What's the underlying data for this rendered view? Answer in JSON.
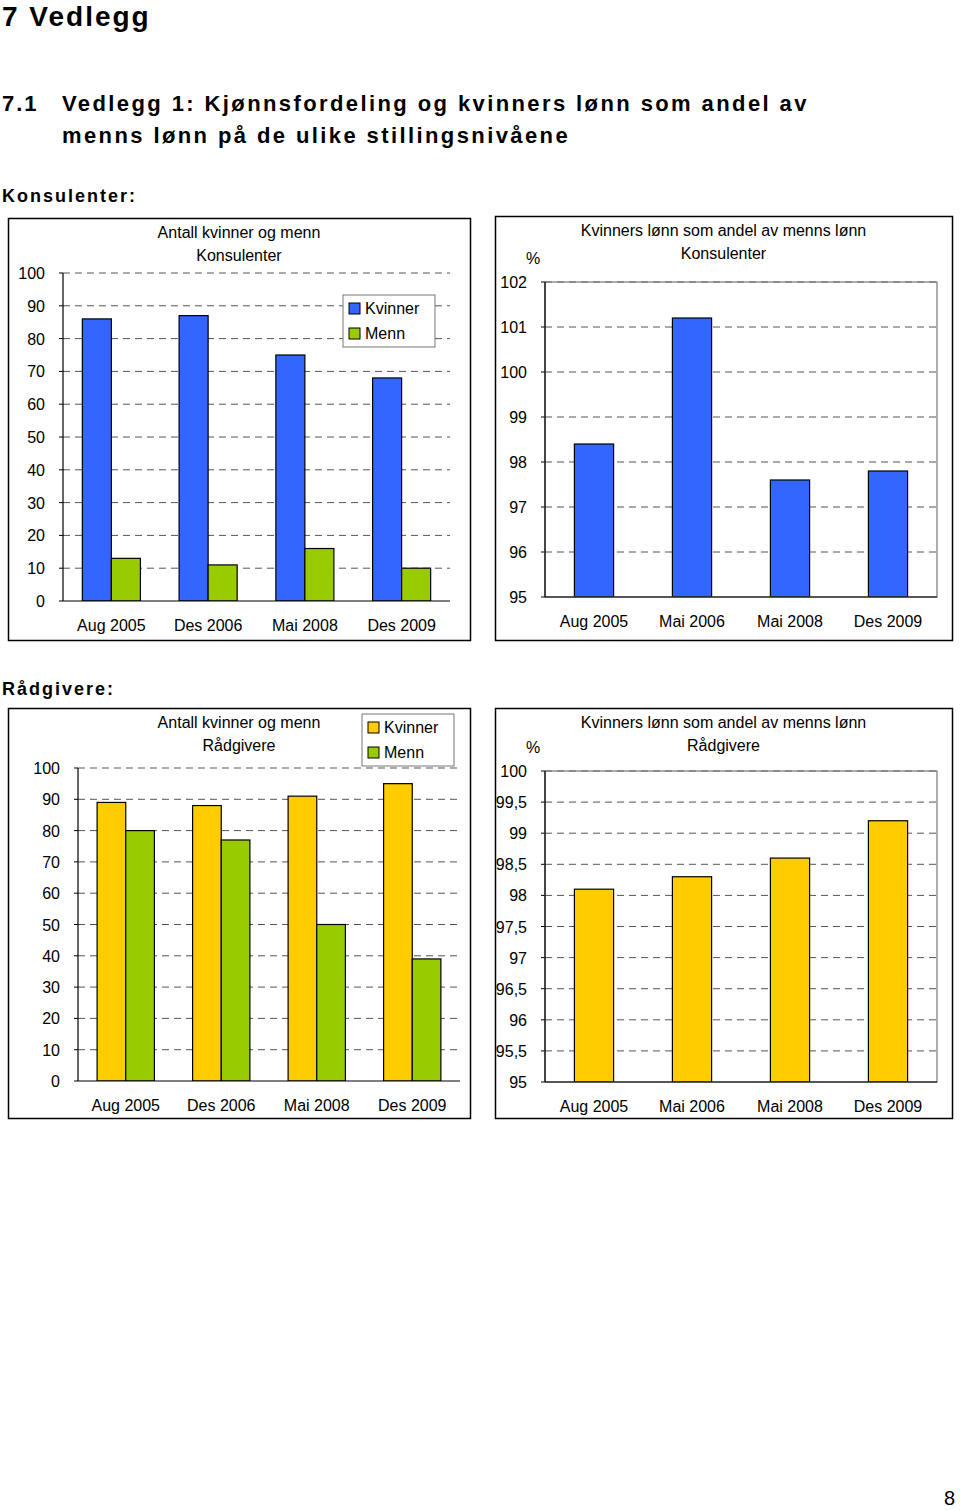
{
  "chapter": {
    "number": "7",
    "title": "Vedlegg"
  },
  "section": {
    "number": "7.1",
    "lines": [
      "Vedlegg 1: Kjønnsfordeling og kvinners lønn som andel av",
      "menns lønn på de ulike stillingsnivåene"
    ]
  },
  "groups": [
    "Konsulenter:",
    "Rådgivere:"
  ],
  "page_number": "8",
  "chart_data": [
    {
      "type": "bar",
      "title": "Antall kvinner og menn",
      "subtitle": "Konsulenter",
      "categories": [
        "Aug 2005",
        "Des 2006",
        "Mai 2008",
        "Des 2009"
      ],
      "series": [
        {
          "name": "Kvinner",
          "color": "#3366ff",
          "values": [
            86,
            87,
            75,
            68
          ]
        },
        {
          "name": "Menn",
          "color": "#99cc00",
          "values": [
            13,
            11,
            16,
            10
          ]
        }
      ],
      "ylim": [
        0,
        100
      ],
      "yticks": [
        0,
        10,
        20,
        30,
        40,
        50,
        60,
        70,
        80,
        90,
        100
      ],
      "grid": true,
      "legend": "upper right"
    },
    {
      "type": "bar",
      "title": "Kvinners lønn som andel av menns lønn",
      "subtitle": "Konsulenter",
      "ylabel": "%",
      "categories": [
        "Aug 2005",
        "Mai 2006",
        "Mai 2008",
        "Des 2009"
      ],
      "values": [
        98.4,
        101.2,
        97.6,
        97.8
      ],
      "color": "#3366ff",
      "ylim": [
        95,
        102
      ],
      "yticks": [
        95,
        96,
        97,
        98,
        99,
        100,
        101,
        102
      ],
      "grid": true
    },
    {
      "type": "bar",
      "title": "Antall kvinner og menn",
      "subtitle": "Rådgivere",
      "categories": [
        "Aug 2005",
        "Des 2006",
        "Mai 2008",
        "Des 2009"
      ],
      "series": [
        {
          "name": "Kvinner",
          "color": "#ffcc00",
          "values": [
            89,
            88,
            91,
            95
          ]
        },
        {
          "name": "Menn",
          "color": "#99cc00",
          "values": [
            80,
            77,
            50,
            39
          ]
        }
      ],
      "ylim": [
        0,
        100
      ],
      "yticks": [
        0,
        10,
        20,
        30,
        40,
        50,
        60,
        70,
        80,
        90,
        100
      ],
      "grid": true,
      "legend": "top right"
    },
    {
      "type": "bar",
      "title": "Kvinners lønn som andel av menns lønn",
      "subtitle": "Rådgivere",
      "ylabel": "%",
      "categories": [
        "Aug 2005",
        "Mai 2006",
        "Mai 2008",
        "Des 2009"
      ],
      "values": [
        98.1,
        98.3,
        98.6,
        99.2
      ],
      "color": "#ffcc00",
      "ylim": [
        95,
        100
      ],
      "yticks": [
        95,
        {
          "value": 95.5,
          "label": "95,5"
        },
        96,
        {
          "value": 96.5,
          "label": "96,5"
        },
        97,
        {
          "value": 97.5,
          "label": "97,5"
        },
        98,
        {
          "value": 98.5,
          "label": "98,5"
        },
        99,
        {
          "value": 99.5,
          "label": "99,5"
        },
        100
      ],
      "grid": true
    }
  ]
}
